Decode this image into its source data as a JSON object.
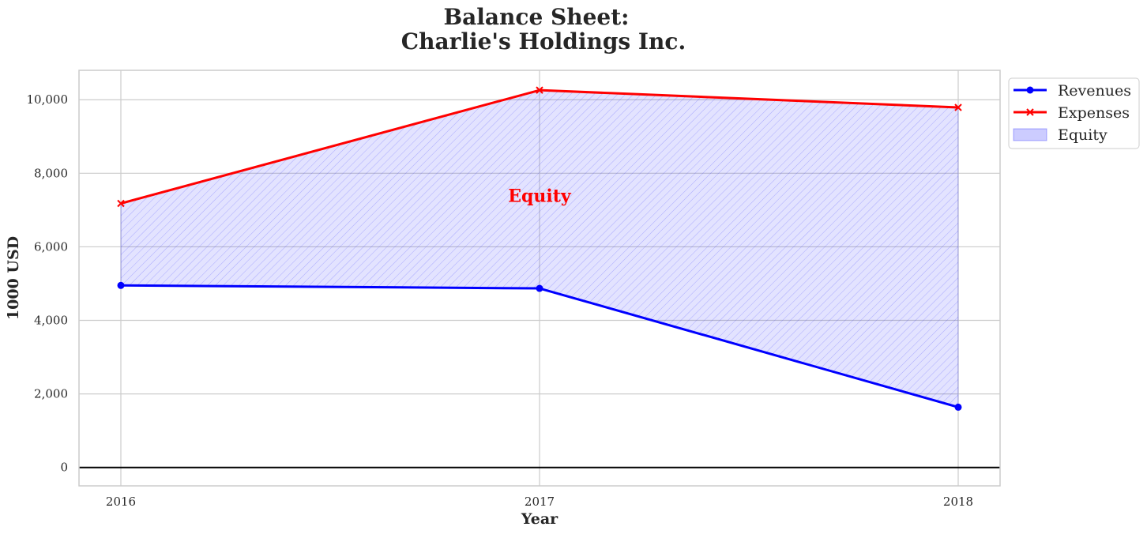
{
  "chart_data": {
    "type": "line",
    "title_line1": "Balance Sheet:",
    "title_line2": "Charlie's Holdings Inc.",
    "xlabel": "Year",
    "ylabel": "1000 USD",
    "x": [
      2016,
      2017,
      2018
    ],
    "x_tick_labels": [
      "2016",
      "2017",
      "2018"
    ],
    "ylim": [
      -500,
      10800
    ],
    "y_ticks": [
      0,
      2000,
      4000,
      6000,
      8000,
      10000
    ],
    "y_tick_labels": [
      "0",
      "2,000",
      "4,000",
      "6,000",
      "8,000",
      "10,000"
    ],
    "series": [
      {
        "name": "Revenues",
        "values": [
          4950,
          4870,
          1640
        ],
        "color": "#0000ff",
        "marker": "circle"
      },
      {
        "name": "Expenses",
        "values": [
          7180,
          10260,
          9790
        ],
        "color": "#ff0000",
        "marker": "x"
      }
    ],
    "fill_between": {
      "name": "Equity",
      "color": "#0000ff",
      "fill_opacity": 0.11,
      "hatch": "////"
    },
    "annotation": {
      "text": "Equity",
      "x": 2017,
      "y": 7400,
      "color": "#ff0000"
    },
    "baseline_y": 0,
    "grid": true,
    "legend_position": "outside-top-right"
  }
}
